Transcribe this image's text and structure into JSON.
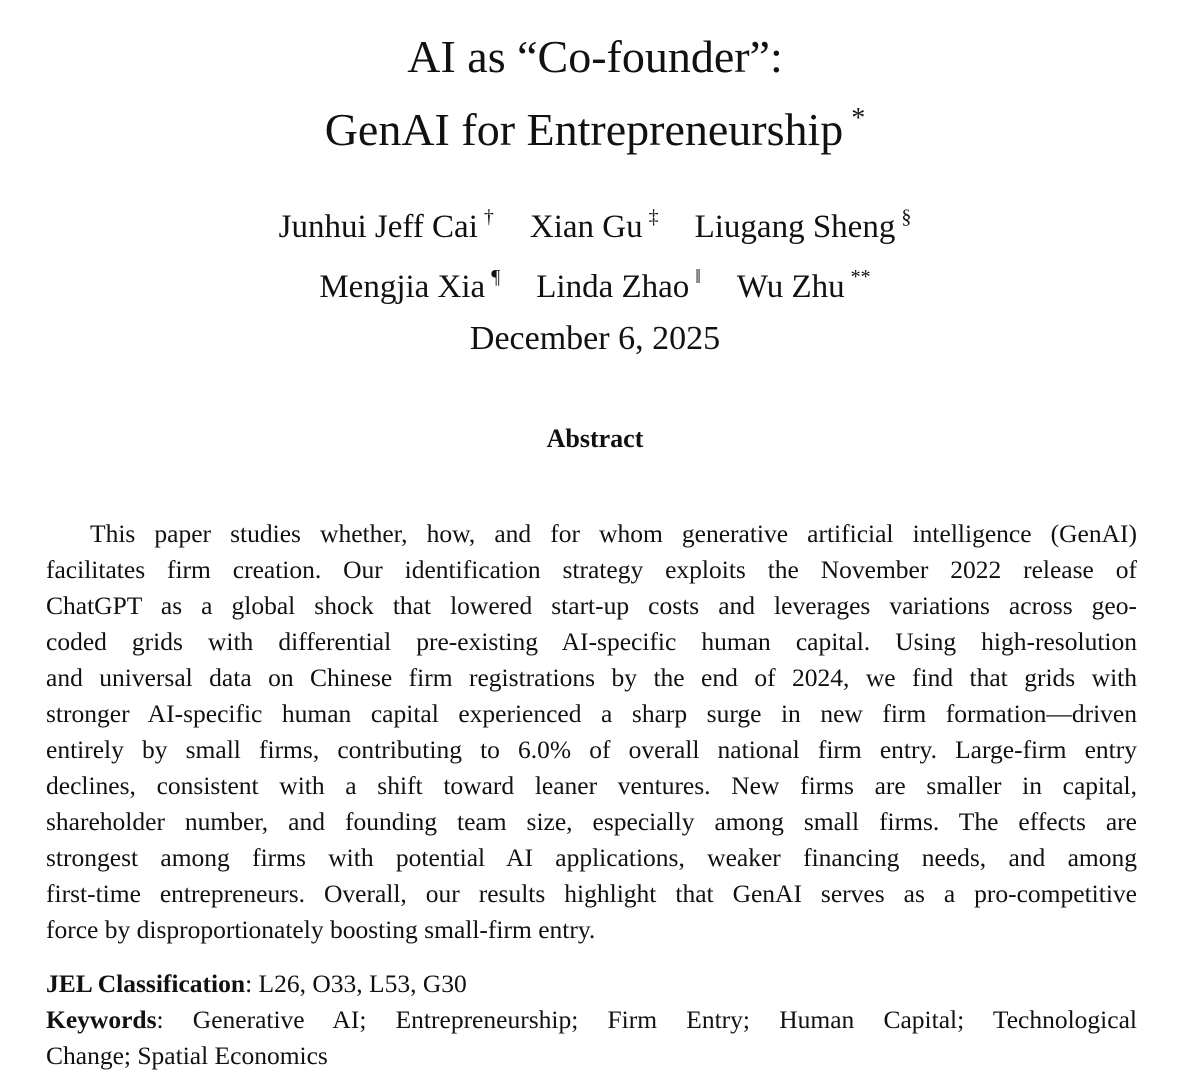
{
  "title": {
    "line1": "AI as “Co-founder”:",
    "line2": "GenAI for Entrepreneurship",
    "mark": "*"
  },
  "authors": [
    [
      {
        "name": "Junhui Jeff Cai",
        "mark": "†"
      },
      {
        "name": "Xian Gu",
        "mark": "‡"
      },
      {
        "name": "Liugang Sheng",
        "mark": "§"
      }
    ],
    [
      {
        "name": "Mengjia Xia",
        "mark": "¶"
      },
      {
        "name": "Linda Zhao",
        "mark": "‖"
      },
      {
        "name": "Wu Zhu",
        "mark": "**"
      }
    ]
  ],
  "date": "December 6, 2025",
  "abstract": {
    "heading": "Abstract",
    "lines": [
      "This paper studies whether, how, and for whom generative artificial intelligence (GenAI)",
      "facilitates firm creation.  Our identification strategy exploits the November 2022 release of",
      "ChatGPT as a global shock that lowered start-up costs and leverages variations across geo-",
      "coded grids with differential pre-existing AI-specific human capital.  Using high-resolution",
      "and universal data on Chinese firm registrations by the end of 2024, we find that grids with",
      "stronger AI-specific human capital experienced a sharp surge in new firm formation—driven",
      "entirely by small firms, contributing to 6.0% of overall national firm entry.  Large-firm entry",
      "declines, consistent with a shift toward leaner ventures.  New firms are smaller in capital,",
      "shareholder number, and founding team size, especially among small firms.  The effects are",
      "strongest among firms with potential AI applications, weaker financing needs, and among",
      "first-time entrepreneurs. Overall, our results highlight that GenAI serves as a pro-competitive",
      "force by disproportionately boosting small-firm entry."
    ]
  },
  "jel": {
    "label": "JEL Classification",
    "value": ": L26, O33, L53, G30"
  },
  "keywords": {
    "label": "Keywords",
    "line1": ":  Generative AI; Entrepreneurship; Firm Entry; Human Capital; Technological",
    "line2": "Change; Spatial Economics"
  }
}
